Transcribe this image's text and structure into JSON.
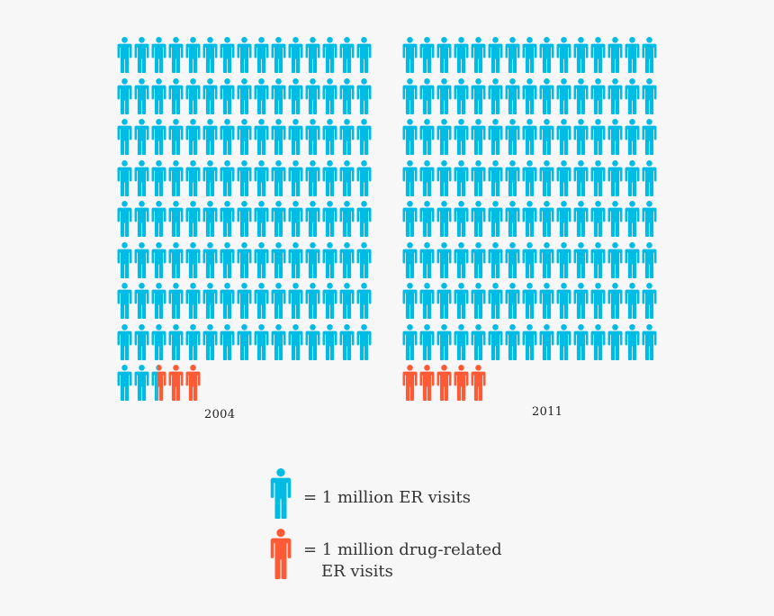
{
  "colors": {
    "background": "#f7f7f7",
    "er_visit": "#00bce4",
    "drug_related": "#ff5a36",
    "text": "#333333"
  },
  "chart_data": {
    "type": "pictogram",
    "title": "",
    "unit": "1 icon = 1 million ER visits",
    "icon": "person-icon",
    "columns_per_row": 15,
    "panels": [
      {
        "label": "2004",
        "total_er_visits_millions": 125,
        "non_drug_related_millions": 122.4,
        "drug_related_millions": 2.6,
        "full_rows": 8,
        "last_row": [
          {
            "color": "er_visit",
            "fraction": 1
          },
          {
            "color": "er_visit",
            "fraction": 1
          },
          {
            "color": "split",
            "er_fraction": 0.4,
            "drug_fraction": 0.6
          },
          {
            "color": "drug_related",
            "fraction": 1
          },
          {
            "color": "drug_related",
            "fraction": 1
          }
        ]
      },
      {
        "label": "2011",
        "total_er_visits_millions": 125,
        "non_drug_related_millions": 120,
        "drug_related_millions": 5,
        "full_rows": 8,
        "last_row": [
          {
            "color": "drug_related",
            "fraction": 1
          },
          {
            "color": "drug_related",
            "fraction": 1
          },
          {
            "color": "drug_related",
            "fraction": 1
          },
          {
            "color": "drug_related",
            "fraction": 1
          },
          {
            "color": "drug_related",
            "fraction": 1
          }
        ]
      }
    ],
    "legend": [
      {
        "color": "er_visit",
        "label": "= 1 million ER visits"
      },
      {
        "color": "drug_related",
        "label": "= 1 million drug-related ER visits"
      }
    ]
  },
  "panels": {
    "left": {
      "year": "2004"
    },
    "right": {
      "year": "2011"
    }
  },
  "legend": {
    "er": {
      "line1": "= 1 million ER visits"
    },
    "drug": {
      "line1": "= 1 million drug-related",
      "line2": "ER visits"
    }
  }
}
